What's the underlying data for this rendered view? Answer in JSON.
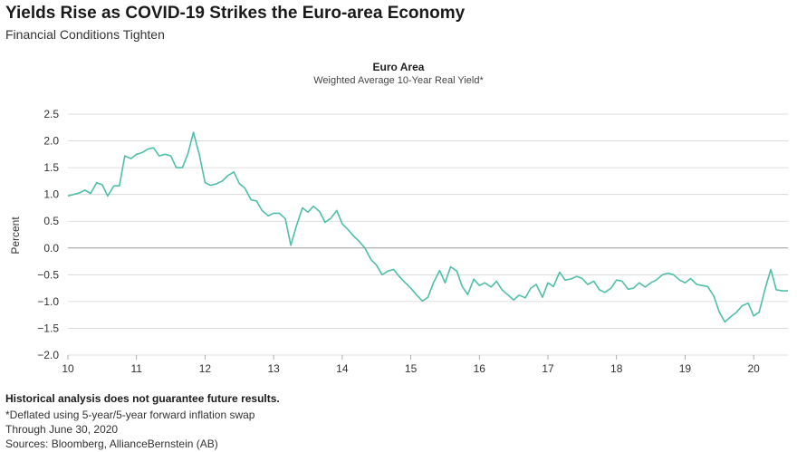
{
  "header": {
    "title": "Yields Rise as COVID-19 Strikes the Euro-area Economy",
    "subtitle": "Financial Conditions Tighten"
  },
  "chart_data": {
    "type": "line",
    "title": "Euro Area",
    "subtitle": "Weighted Average 10-Year Real Yield*",
    "xlabel": "",
    "ylabel": "Percent",
    "xlim": [
      10,
      20.5
    ],
    "ylim": [
      -2.0,
      2.5
    ],
    "x_ticks": [
      10,
      11,
      12,
      13,
      14,
      15,
      16,
      17,
      18,
      19,
      20
    ],
    "x_tick_labels": [
      "10",
      "11",
      "12",
      "13",
      "14",
      "15",
      "16",
      "17",
      "18",
      "19",
      "20"
    ],
    "y_ticks": [
      2.5,
      2.0,
      1.5,
      1.0,
      0.5,
      0.0,
      -0.5,
      -1.0,
      -1.5,
      -2.0
    ],
    "y_tick_labels": [
      "2.5",
      "2.0",
      "1.5",
      "1.0",
      "0.5",
      "0.0",
      "−0.5",
      "−1.0",
      "−1.5",
      "−2.0"
    ],
    "grid": true,
    "color": "#4fbfa8",
    "series": [
      {
        "name": "Weighted Average 10-Year Real Yield",
        "x": [
          10.0,
          10.08,
          10.17,
          10.25,
          10.33,
          10.42,
          10.5,
          10.58,
          10.67,
          10.75,
          10.83,
          10.92,
          11.0,
          11.08,
          11.17,
          11.25,
          11.33,
          11.42,
          11.5,
          11.58,
          11.67,
          11.75,
          11.83,
          11.92,
          12.0,
          12.08,
          12.17,
          12.25,
          12.33,
          12.42,
          12.5,
          12.58,
          12.67,
          12.75,
          12.83,
          12.92,
          13.0,
          13.08,
          13.17,
          13.25,
          13.33,
          13.42,
          13.5,
          13.58,
          13.67,
          13.75,
          13.83,
          13.92,
          14.0,
          14.08,
          14.17,
          14.25,
          14.33,
          14.42,
          14.5,
          14.58,
          14.67,
          14.75,
          14.83,
          14.92,
          15.0,
          15.08,
          15.17,
          15.25,
          15.33,
          15.42,
          15.5,
          15.58,
          15.67,
          15.75,
          15.83,
          15.92,
          16.0,
          16.08,
          16.17,
          16.25,
          16.33,
          16.42,
          16.5,
          16.58,
          16.67,
          16.75,
          16.83,
          16.92,
          17.0,
          17.08,
          17.17,
          17.25,
          17.33,
          17.42,
          17.5,
          17.58,
          17.67,
          17.75,
          17.83,
          17.92,
          18.0,
          18.08,
          18.17,
          18.25,
          18.33,
          18.42,
          18.5,
          18.58,
          18.67,
          18.75,
          18.83,
          18.92,
          19.0,
          19.08,
          19.17,
          19.25,
          19.33,
          19.42,
          19.5,
          19.58,
          19.67,
          19.75,
          19.83,
          19.92,
          20.0,
          20.08,
          20.17,
          20.25,
          20.33,
          20.42,
          20.5
        ],
        "y": [
          0.97,
          1.0,
          1.03,
          1.08,
          1.02,
          1.22,
          1.18,
          0.97,
          1.16,
          1.16,
          1.72,
          1.67,
          1.75,
          1.78,
          1.85,
          1.87,
          1.72,
          1.75,
          1.72,
          1.5,
          1.5,
          1.76,
          2.16,
          1.72,
          1.22,
          1.17,
          1.2,
          1.25,
          1.35,
          1.42,
          1.2,
          1.12,
          0.9,
          0.88,
          0.7,
          0.6,
          0.65,
          0.65,
          0.55,
          0.05,
          0.4,
          0.75,
          0.67,
          0.78,
          0.68,
          0.48,
          0.55,
          0.7,
          0.45,
          0.35,
          0.22,
          0.12,
          0.0,
          -0.22,
          -0.32,
          -0.5,
          -0.43,
          -0.4,
          -0.53,
          -0.65,
          -0.75,
          -0.87,
          -0.99,
          -0.92,
          -0.65,
          -0.42,
          -0.65,
          -0.35,
          -0.43,
          -0.72,
          -0.87,
          -0.58,
          -0.7,
          -0.65,
          -0.73,
          -0.62,
          -0.78,
          -0.88,
          -0.97,
          -0.88,
          -0.93,
          -0.75,
          -0.68,
          -0.92,
          -0.65,
          -0.72,
          -0.45,
          -0.6,
          -0.58,
          -0.53,
          -0.57,
          -0.68,
          -0.62,
          -0.78,
          -0.83,
          -0.75,
          -0.6,
          -0.62,
          -0.77,
          -0.75,
          -0.65,
          -0.73,
          -0.65,
          -0.6,
          -0.5,
          -0.47,
          -0.5,
          -0.6,
          -0.65,
          -0.57,
          -0.68,
          -0.7,
          -0.72,
          -0.9,
          -1.2,
          -1.38,
          -1.28,
          -1.2,
          -1.08,
          -1.03,
          -1.27,
          -1.2,
          -0.75,
          -0.4,
          -0.78,
          -0.8,
          -0.8
        ]
      }
    ]
  },
  "footer": {
    "disclaimer": "Historical analysis does not guarantee future results.",
    "note": "*Deflated using 5-year/5-year forward inflation swap",
    "through": "Through June 30, 2020",
    "sources": "Sources: Bloomberg, AllianceBernstein (AB)"
  }
}
